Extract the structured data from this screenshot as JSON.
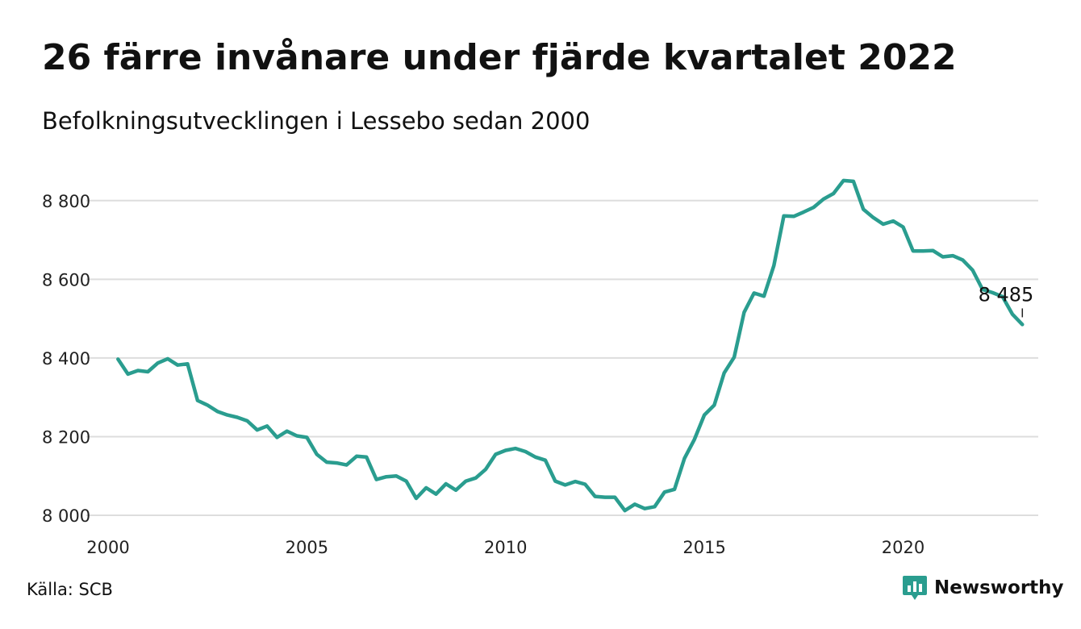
{
  "title": "26 färre invånare under fjärde kvartalet 2022",
  "subtitle": "Befolkningsutvecklingen i Lessebo sedan 2000",
  "source": "Källa: SCB",
  "brand": {
    "name": "Newsworthy",
    "icon": "newsworthy-logo-icon",
    "color": "#2a9d8f"
  },
  "colors": {
    "line": "#2a9d8f",
    "grid": "#dddddd",
    "text": "#111111"
  },
  "chart_data": {
    "type": "line",
    "title": "26 färre invånare under fjärde kvartalet 2022",
    "subtitle": "Befolkningsutvecklingen i Lessebo sedan 2000",
    "xlabel": "",
    "ylabel": "",
    "xlim": [
      2000,
      2023.4
    ],
    "ylim": [
      8000,
      8900
    ],
    "x_ticks": [
      2000,
      2005,
      2010,
      2015,
      2020
    ],
    "x_tick_labels": [
      "2000",
      "2005",
      "2010",
      "2015",
      "2020"
    ],
    "y_ticks": [
      8000,
      8200,
      8400,
      8600,
      8800
    ],
    "y_tick_labels": [
      "8 000",
      "8 200",
      "8 400",
      "8 600",
      "8 800"
    ],
    "grid": "horizontal",
    "legend": "none",
    "end_label": "8 485",
    "series": [
      {
        "x": [
          2000.25,
          2000.5,
          2000.75,
          2001.0,
          2001.25,
          2001.5,
          2001.75,
          2002.0,
          2002.25,
          2002.5,
          2002.75,
          2003.0,
          2003.25,
          2003.5,
          2003.75,
          2004.0,
          2004.25,
          2004.5,
          2004.75,
          2005.0,
          2005.25,
          2005.5,
          2005.75,
          2006.0,
          2006.25,
          2006.5,
          2006.75,
          2007.0,
          2007.25,
          2007.5,
          2007.75,
          2008.0,
          2008.25,
          2008.5,
          2008.75,
          2009.0,
          2009.25,
          2009.5,
          2009.75,
          2010.0,
          2010.25,
          2010.5,
          2010.75,
          2011.0,
          2011.25,
          2011.5,
          2011.75,
          2012.0,
          2012.25,
          2012.5,
          2012.75,
          2013.0,
          2013.25,
          2013.5,
          2013.75,
          2014.0,
          2014.25,
          2014.5,
          2014.75,
          2015.0,
          2015.25,
          2015.5,
          2015.75,
          2016.0,
          2016.25,
          2016.5,
          2016.75,
          2017.0,
          2017.25,
          2017.5,
          2017.75,
          2018.0,
          2018.25,
          2018.5,
          2018.75,
          2019.0,
          2019.25,
          2019.5,
          2019.75,
          2020.0,
          2020.25,
          2020.5,
          2020.75,
          2021.0,
          2021.25,
          2021.5,
          2021.75,
          2022.0,
          2022.25,
          2022.5,
          2022.75,
          2023.0
        ],
        "y": [
          8397,
          8359,
          8368,
          8365,
          8387,
          8398,
          8382,
          8385,
          8292,
          8280,
          8264,
          8255,
          8249,
          8240,
          8217,
          8227,
          8198,
          8214,
          8202,
          8198,
          8155,
          8135,
          8133,
          8128,
          8150,
          8148,
          8091,
          8098,
          8100,
          8087,
          8043,
          8070,
          8054,
          8080,
          8064,
          8087,
          8095,
          8117,
          8155,
          8165,
          8170,
          8162,
          8148,
          8140,
          8087,
          8077,
          8086,
          8079,
          8048,
          8046,
          8046,
          8012,
          8028,
          8017,
          8022,
          8059,
          8066,
          8145,
          8193,
          8255,
          8280,
          8362,
          8402,
          8516,
          8565,
          8557,
          8635,
          8761,
          8760,
          8771,
          8783,
          8804,
          8818,
          8851,
          8849,
          8778,
          8757,
          8740,
          8748,
          8733,
          8672,
          8672,
          8673,
          8657,
          8660,
          8649,
          8623,
          8574,
          8566,
          8556,
          8511,
          8485
        ]
      }
    ]
  }
}
